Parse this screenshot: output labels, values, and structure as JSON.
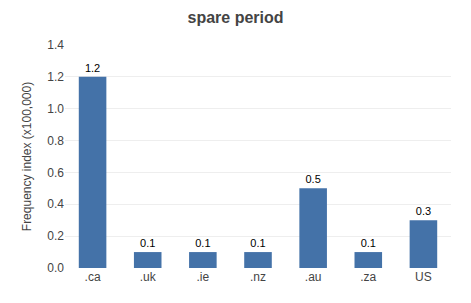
{
  "chart_data": {
    "type": "bar",
    "title": "spare period",
    "categories": [
      ".ca",
      ".uk",
      ".ie",
      ".nz",
      ".au",
      ".za",
      "US"
    ],
    "values": [
      1.2,
      0.1,
      0.1,
      0.1,
      0.5,
      0.1,
      0.3
    ],
    "color": "#4472a8",
    "ylabel": "Frequency index (x100,000)",
    "ylim": [
      0,
      1.4
    ],
    "yticks": [
      {
        "value": 0,
        "label": "0.0"
      },
      0.2,
      0.4,
      0.6,
      0.8,
      {
        "value": 1,
        "label": "1.0"
      },
      1.2,
      1.4
    ],
    "grid": true,
    "data_labels": true
  }
}
